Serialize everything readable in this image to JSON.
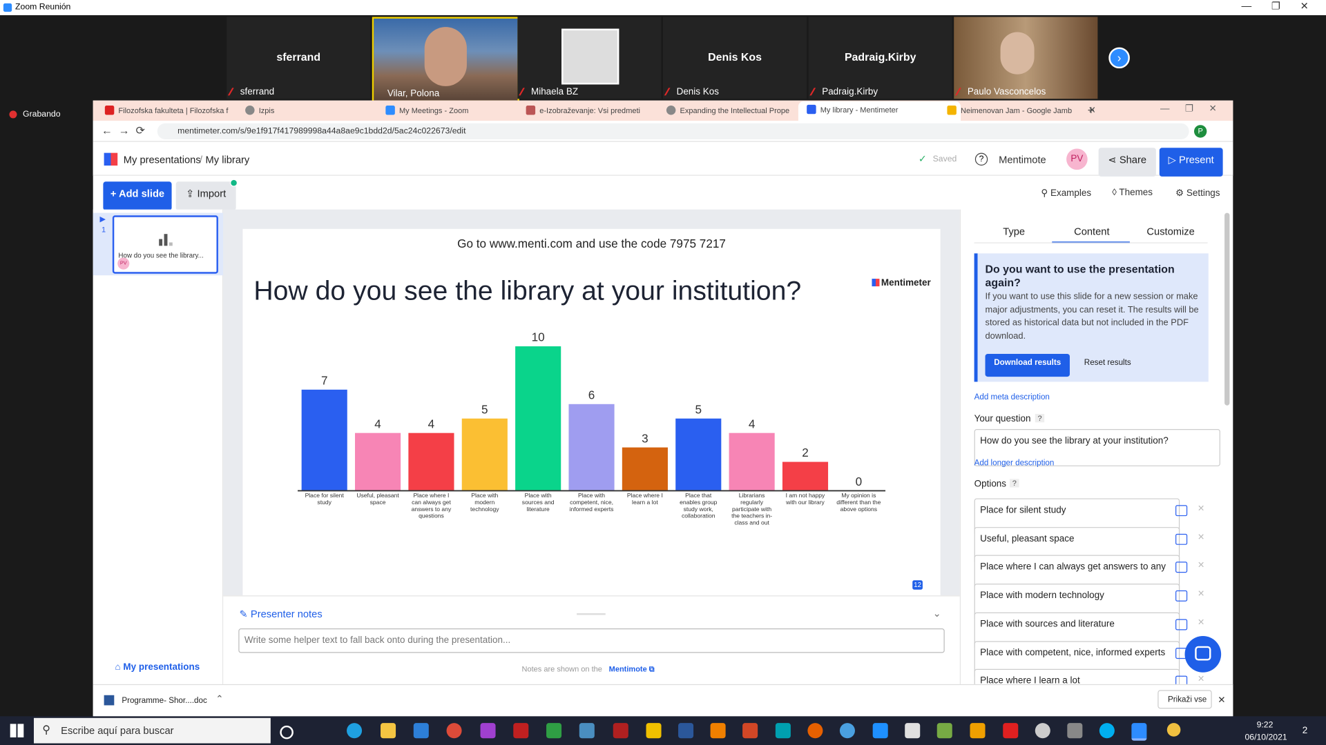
{
  "window": {
    "title": "Zoom Reunión",
    "recording": "Grabando"
  },
  "participants": [
    "sferrand",
    "Vilar, Polona",
    "Mihaela BZ",
    "Denis Kos",
    "Padraig.Kirby",
    "Paulo Vasconcelos"
  ],
  "browser": {
    "tabs": [
      "Filozofska fakulteta | Filozofska f",
      "Izpis",
      "My Meetings - Zoom",
      "e-Izobraževanje: Vsi predmeti",
      "Expanding the Intellectual Prope",
      "My library - Mentimeter",
      "Neimenovan Jam - Google Jamb"
    ],
    "url": "mentimeter.com/s/9e1f917f417989998a44a8ae9c1bdd2d/5ac24c022673/edit",
    "profile": "P"
  },
  "header": {
    "breadcrumb": "My presentations",
    "separator": "/",
    "current": "My library",
    "saved": "Saved",
    "mentimote": "Mentimote",
    "avatar": "PV",
    "share": "Share",
    "present": "Present"
  },
  "toolbar": {
    "add_slide": "+ Add slide",
    "import": "Import",
    "examples": "Examples",
    "themes": "Themes",
    "settings": "Settings"
  },
  "thumbnail": {
    "number": "1",
    "title": "How do you see the library...",
    "avatar": "PV"
  },
  "slide": {
    "join": "Go to www.menti.com and use the code 7975 7217",
    "logo": "Mentimeter",
    "question": "How do you see the library at your institution?",
    "responses": "12",
    "chart": {
      "type": "bar",
      "categories": [
        "Place for silent study",
        "Useful, pleasant space",
        "Place where I can always get answers to any questions",
        "Place with modern technology",
        "Place with sources and literature",
        "Place with competent, nice, informed experts",
        "Place where I learn a lot",
        "Place that enables group study work, collaboration",
        "Librarians regularly participate with the teachers in-class and out",
        "I am not happy with our library",
        "My opinion is different than the above options"
      ],
      "values": [
        7,
        4,
        4,
        5,
        10,
        6,
        3,
        5,
        4,
        2,
        0
      ],
      "colors": [
        "#2a5ff0",
        "#f785b5",
        "#f43f47",
        "#fbbf33",
        "#0ad48b",
        "#9f9df0",
        "#d4630f",
        "#2a5ff0",
        "#f785b5",
        "#f43f47",
        "#fbbf33"
      ]
    }
  },
  "notes": {
    "title": "Presenter notes",
    "placeholder": "Write some helper text to fall back onto during the presentation...",
    "footer": "Notes are shown on the",
    "link": "Mentimote"
  },
  "left_panel": {
    "link": "My presentations"
  },
  "right_panel": {
    "tabs": [
      "Type",
      "Content",
      "Customize"
    ],
    "info": {
      "title": "Do you want to use the presentation again?",
      "text": "If you want to use this slide for a new session or make major adjustments, you can reset it. The results will be stored as historical data but not included in the PDF download.",
      "download": "Download results",
      "reset": "Reset results"
    },
    "meta": "Add meta description",
    "question_label": "Your question",
    "help": "?",
    "question": "How do you see the library at your institution?",
    "longer": "Add longer description",
    "options_label": "Options",
    "options": [
      "Place for silent study",
      "Useful, pleasant space",
      "Place where I can always get answers to any",
      "Place with modern technology",
      "Place with sources and literature",
      "Place with competent, nice, informed experts",
      "Place where I learn a lot"
    ]
  },
  "downloads": {
    "file": "Programme- Shor....doc",
    "show_all": "Prikaži vse"
  },
  "taskbar": {
    "search": "Escribe aquí para buscar",
    "time": "9:22",
    "date": "06/10/2021",
    "notifications": "2"
  }
}
